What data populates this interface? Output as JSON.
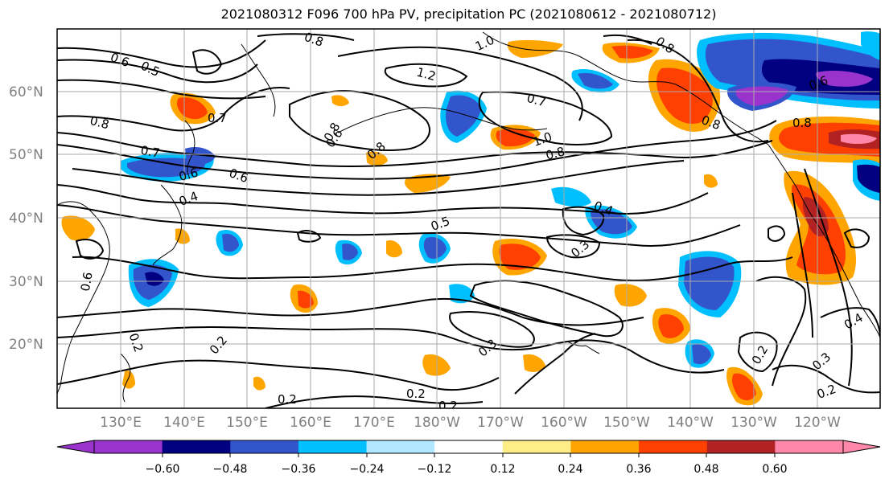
{
  "title": "2021080312 F096 700 hPa PV, precipitation PC (2021080612 - 2021080712)",
  "lat_labels": [
    "60°N",
    "50°N",
    "40°N",
    "30°N",
    "20°N"
  ],
  "lon_labels": [
    "130°E",
    "140°E",
    "150°E",
    "160°E",
    "170°E",
    "180°W",
    "170°W",
    "160°W",
    "150°W",
    "140°W",
    "130°W",
    "120°W"
  ],
  "colorbar": {
    "tick_labels": [
      "−0.60",
      "−0.48",
      "−0.36",
      "−0.24",
      "−0.12",
      "0.12",
      "0.24",
      "0.36",
      "0.48",
      "0.60"
    ],
    "colors": [
      "#9933cc",
      "#000080",
      "#3355cc",
      "#00bfff",
      "#b3e6ff",
      "#ffffff",
      "#ffee88",
      "#ffa500",
      "#ff4000",
      "#b22222",
      "#ff88aa",
      "#ff88aa"
    ]
  },
  "contour_labels": [
    "0.6",
    "0.5",
    "0.8",
    "0.7",
    "0.8",
    "0.7",
    "0.6",
    "0.6",
    "0.4",
    "0.6",
    "0.2",
    "0.8",
    "1.0",
    "1.2",
    "0.6",
    "0.8",
    "0.7",
    "1.0",
    "0.8",
    "0.5",
    "0.4",
    "0.3",
    "0.3",
    "0.2",
    "0.2",
    "0.2",
    "0.2",
    "0.8",
    "0.8",
    "0.6",
    "0.8",
    "0.2",
    "0.3",
    "0.4",
    "0.2"
  ]
}
